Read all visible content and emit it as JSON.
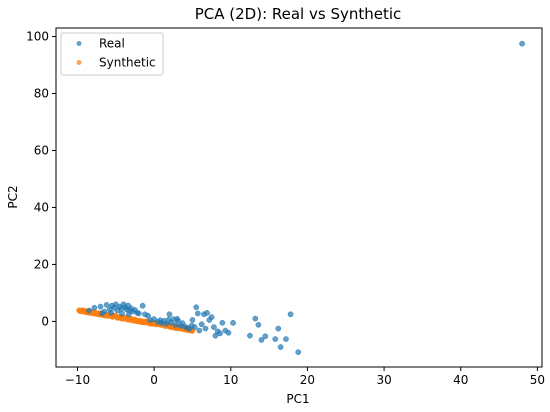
{
  "chart_data": {
    "type": "scatter",
    "title": "PCA (2D): Real vs Synthetic",
    "xlabel": "PC1",
    "ylabel": "PC2",
    "xlim": [
      -12.8,
      50.6
    ],
    "ylim": [
      -16.0,
      103.0
    ],
    "xticks": [
      -10,
      0,
      10,
      20,
      30,
      40,
      50
    ],
    "yticks": [
      0,
      20,
      40,
      60,
      80,
      100
    ],
    "xtick_labels": [
      "−10",
      "0",
      "10",
      "20",
      "30",
      "40",
      "50"
    ],
    "ytick_labels": [
      "0",
      "20",
      "40",
      "60",
      "80",
      "100"
    ],
    "legend_position": "upper-left",
    "grid": false,
    "series": [
      {
        "name": "Real",
        "color": "#1f77b4",
        "points": [
          [
            48.0,
            97.5
          ],
          [
            -8.5,
            3.8
          ],
          [
            -7.8,
            4.8
          ],
          [
            -7.0,
            5.2
          ],
          [
            -6.5,
            3.5
          ],
          [
            -6.2,
            5.8
          ],
          [
            -5.8,
            4.2
          ],
          [
            -5.5,
            5.5
          ],
          [
            -5.2,
            4.8
          ],
          [
            -5.0,
            6.0
          ],
          [
            -4.8,
            3.8
          ],
          [
            -4.5,
            5.2
          ],
          [
            -4.3,
            4.5
          ],
          [
            -4.0,
            6.0
          ],
          [
            -3.8,
            5.0
          ],
          [
            -3.6,
            4.2
          ],
          [
            -3.4,
            5.6
          ],
          [
            -3.2,
            3.8
          ],
          [
            -3.0,
            4.6
          ],
          [
            -2.8,
            3.5
          ],
          [
            -2.5,
            4.0
          ],
          [
            -2.2,
            3.0
          ],
          [
            -2.0,
            2.8
          ],
          [
            -1.5,
            5.5
          ],
          [
            -1.2,
            2.5
          ],
          [
            -0.8,
            2.0
          ],
          [
            -5.6,
            3.0
          ],
          [
            -6.8,
            2.8
          ],
          [
            -4.2,
            2.8
          ],
          [
            -3.3,
            2.5
          ],
          [
            -0.5,
            0.5
          ],
          [
            0.0,
            0.8
          ],
          [
            0.5,
            -0.2
          ],
          [
            0.8,
            0.4
          ],
          [
            1.0,
            -0.5
          ],
          [
            1.3,
            0.2
          ],
          [
            1.6,
            -0.8
          ],
          [
            1.9,
            0.6
          ],
          [
            2.2,
            -0.4
          ],
          [
            2.5,
            0.8
          ],
          [
            2.8,
            -1.2
          ],
          [
            3.1,
            0.3
          ],
          [
            3.4,
            -1.5
          ],
          [
            3.7,
            -0.6
          ],
          [
            4.0,
            -1.8
          ],
          [
            4.3,
            -2.2
          ],
          [
            4.6,
            -2.6
          ],
          [
            4.9,
            -1.5
          ],
          [
            2.0,
            2.5
          ],
          [
            3.0,
            0.9
          ],
          [
            5.0,
            0.5
          ],
          [
            5.3,
            -2.0
          ],
          [
            5.5,
            5.0
          ],
          [
            5.7,
            2.8
          ],
          [
            5.9,
            -3.2
          ],
          [
            6.2,
            -1.0
          ],
          [
            6.5,
            2.5
          ],
          [
            6.7,
            -2.5
          ],
          [
            6.9,
            3.0
          ],
          [
            7.2,
            0.5
          ],
          [
            7.5,
            1.5
          ],
          [
            7.8,
            -2.0
          ],
          [
            8.0,
            -5.0
          ],
          [
            8.3,
            -3.5
          ],
          [
            8.6,
            -4.2
          ],
          [
            8.9,
            -0.5
          ],
          [
            9.3,
            -3.2
          ],
          [
            9.7,
            -4.0
          ],
          [
            10.3,
            -0.5
          ],
          [
            12.5,
            -5.0
          ],
          [
            13.2,
            1.0
          ],
          [
            13.6,
            -1.2
          ],
          [
            14.0,
            -6.5
          ],
          [
            14.5,
            -5.2
          ],
          [
            15.8,
            -6.2
          ],
          [
            16.2,
            -2.5
          ],
          [
            16.5,
            -9.0
          ],
          [
            17.2,
            -6.2
          ],
          [
            17.8,
            2.5
          ],
          [
            18.8,
            -10.8
          ]
        ]
      },
      {
        "name": "Synthetic",
        "color": "#ff7f0e",
        "trend": {
          "x_start": -9.8,
          "x_end": 5.0,
          "count": 240,
          "y_at_x_start": 3.9,
          "y_at_x_end": -3.1,
          "spread": 0.6
        }
      }
    ]
  }
}
